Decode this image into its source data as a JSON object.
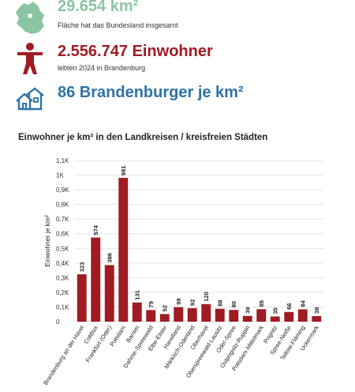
{
  "colors": {
    "green": "#8cc5a3",
    "red": "#a01b23",
    "blue": "#2f73a5",
    "bar": "#a01b23",
    "grid": "#e4e4e4"
  },
  "stats": [
    {
      "icon": "brandenburg-map-icon",
      "value": "29.654 km²",
      "caption": "Fläche hat das Bundesland insgesamt"
    },
    {
      "icon": "person-icon",
      "value": "2.556.747 Einwohner",
      "caption": "lebten 2024 in Brandenburg"
    },
    {
      "icon": "houses-icon",
      "value": "86 Brandenburger je km²"
    }
  ],
  "chart_data": {
    "type": "bar",
    "title": "Einwohner je km² in den Landkreisen / kreisfreien Städten",
    "ylabel": "Einwohner je km²",
    "xlabel": "",
    "ylim": [
      0,
      1100
    ],
    "yticks": [
      0,
      100,
      200,
      300,
      400,
      500,
      600,
      700,
      800,
      900,
      1000,
      1100
    ],
    "ytick_labels": [
      "0",
      "0,1K",
      "0,2K",
      "0,3K",
      "0,4K",
      "0,5K",
      "0,6K",
      "0,7K",
      "0,8K",
      "0,9K",
      "1K",
      "1,1K"
    ],
    "grid": true,
    "categories": [
      "Brandenburg an der Havel",
      "Cottbus",
      "Frankfurt (Oder)",
      "Potsdam",
      "Barnim",
      "Dahme-Spreewald",
      "Elbe-Elster",
      "Havelland",
      "Märkisch-Oderland",
      "Oberhavel",
      "Oberspreewald-Lausitz",
      "Oder-Spree",
      "Ostprignitz-Ruppin",
      "Potsdam-Mittelmark",
      "Prignitz",
      "Spree-Neiße",
      "Teltow-Fläming",
      "Uckermark"
    ],
    "values": [
      323,
      574,
      386,
      981,
      131,
      79,
      52,
      99,
      92,
      120,
      88,
      80,
      39,
      85,
      35,
      66,
      84,
      38
    ]
  }
}
